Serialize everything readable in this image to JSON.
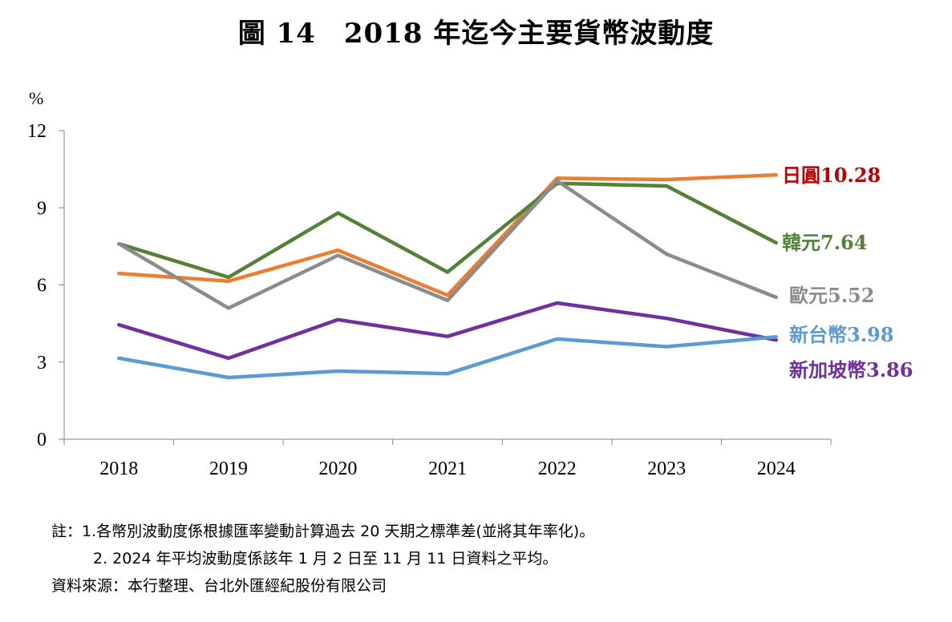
{
  "title": "圖 14　2018 年迄今主要貨幣波動度",
  "chart_data": {
    "type": "line",
    "ylabel": "%",
    "ylim": [
      0,
      12
    ],
    "yticks": [
      "0",
      "3",
      "6",
      "9",
      "12"
    ],
    "categories": [
      "2018",
      "2019",
      "2020",
      "2021",
      "2022",
      "2023",
      "2024"
    ],
    "series": [
      {
        "name": "日圓",
        "end_label": "日圓10.28",
        "color": "#ED7D31",
        "label_color": "#C00000",
        "values": [
          6.45,
          6.15,
          7.35,
          5.6,
          10.15,
          10.1,
          10.28
        ]
      },
      {
        "name": "韓元",
        "end_label": "韓元7.64",
        "color": "#548235",
        "label_color": "#548235",
        "values": [
          7.6,
          6.3,
          8.8,
          6.5,
          9.95,
          9.85,
          7.64
        ]
      },
      {
        "name": "歐元",
        "end_label": "歐元5.52",
        "color": "#8C8C8C",
        "label_color": "#8C8C8C",
        "values": [
          7.6,
          5.1,
          7.15,
          5.4,
          10.05,
          7.2,
          5.52
        ]
      },
      {
        "name": "新加坡幣",
        "end_label": "新加坡幣3.86",
        "color": "#7030A0",
        "label_color": "#7030A0",
        "values": [
          4.45,
          3.15,
          4.65,
          4.0,
          5.3,
          4.7,
          3.86
        ]
      },
      {
        "name": "新台幣",
        "end_label": "新台幣3.98",
        "color": "#5B9BD5",
        "label_color": "#5B9BD5",
        "values": [
          3.15,
          2.4,
          2.65,
          2.55,
          3.9,
          3.6,
          3.98
        ]
      }
    ]
  },
  "notes": {
    "line1": "註：1.各幣別波動度係根據匯率變動計算過去 20 天期之標準差(並將其年率化)。",
    "line2": "2. 2024 年平均波動度係該年 1 月 2 日至 11 月 11 日資料之平均。",
    "source": "資料來源：本行整理、台北外匯經紀股份有限公司"
  }
}
